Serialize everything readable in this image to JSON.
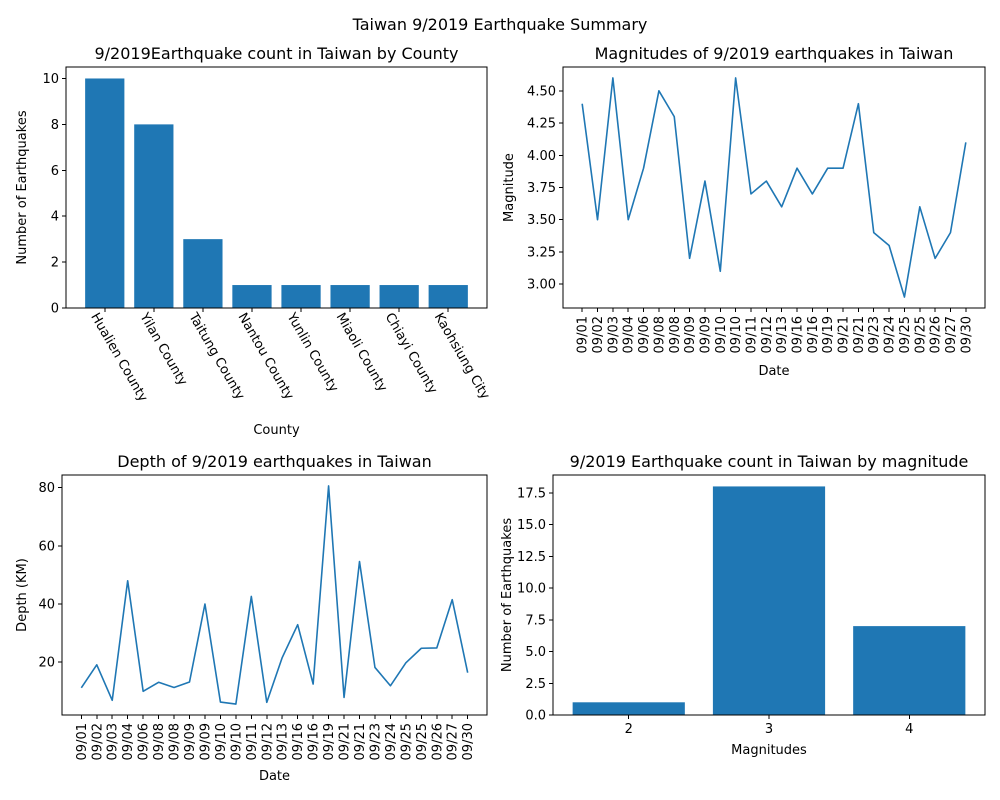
{
  "suptitle": "Taiwan 9/2019 Earthquake Summary",
  "colors": {
    "bar": "#1f77b4",
    "line": "#1f77b4",
    "axis": "#000000"
  },
  "chart_data": [
    {
      "type": "bar",
      "title": "9/2019Earthquake count in Taiwan by County",
      "xlabel": "County",
      "ylabel": "Number of Earthquakes",
      "categories": [
        "Hualien County",
        "Yilan County",
        "Taitung County",
        "Nantou County",
        "Yunlin County",
        "Miaoli County",
        "Chiayi County",
        "Kaohsiung City"
      ],
      "values": [
        10,
        8,
        3,
        1,
        1,
        1,
        1,
        1
      ],
      "ylim": [
        0,
        10.5
      ],
      "yticks": [
        0,
        2,
        4,
        6,
        8,
        10
      ],
      "ytick_labels": [
        "0",
        "2",
        "4",
        "6",
        "8",
        "10"
      ],
      "grid": false,
      "xtick_rotation": -60
    },
    {
      "type": "line",
      "title": "Magnitudes of 9/2019 earthquakes in Taiwan",
      "xlabel": "Date",
      "ylabel": "Magnitude",
      "x": [
        "09/01",
        "09/02",
        "09/03",
        "09/04",
        "09/06",
        "09/08",
        "09/08",
        "09/09",
        "09/09",
        "09/10",
        "09/10",
        "09/11",
        "09/12",
        "09/13",
        "09/16",
        "09/16",
        "09/19",
        "09/21",
        "09/21",
        "09/23",
        "09/24",
        "09/25",
        "09/25",
        "09/26",
        "09/27",
        "09/30"
      ],
      "values": [
        4.4,
        3.5,
        4.6,
        3.5,
        3.9,
        4.5,
        4.3,
        3.2,
        3.8,
        3.1,
        4.6,
        3.7,
        3.8,
        3.6,
        3.9,
        3.7,
        3.9,
        3.9,
        4.4,
        3.4,
        3.3,
        2.9,
        3.6,
        3.2,
        3.4,
        4.1
      ],
      "ylim": [
        2.815,
        4.685
      ],
      "yticks": [
        3.0,
        3.25,
        3.5,
        3.75,
        4.0,
        4.25,
        4.5
      ],
      "ytick_labels": [
        "3.00",
        "3.25",
        "3.50",
        "3.75",
        "4.00",
        "4.25",
        "4.50"
      ],
      "grid": false,
      "xtick_rotation": -90
    },
    {
      "type": "line",
      "title": "Depth of 9/2019 earthquakes in Taiwan",
      "xlabel": "Date",
      "ylabel": "Depth (KM)",
      "x": [
        "09/01",
        "09/02",
        "09/03",
        "09/04",
        "09/06",
        "09/08",
        "09/08",
        "09/09",
        "09/09",
        "09/10",
        "09/10",
        "09/11",
        "09/12",
        "09/13",
        "09/16",
        "09/16",
        "09/19",
        "09/21",
        "09/21",
        "09/23",
        "09/24",
        "09/25",
        "09/25",
        "09/26",
        "09/27",
        "09/30"
      ],
      "values": [
        11.2,
        19.1,
        6.9,
        48.0,
        10.0,
        13.1,
        11.3,
        13.2,
        40.0,
        6.3,
        5.6,
        42.6,
        6.2,
        21.6,
        32.9,
        12.5,
        80.6,
        7.9,
        54.6,
        18.2,
        11.9,
        19.8,
        24.8,
        24.9,
        41.5,
        16.4
      ],
      "ylim": [
        1.85,
        84.35
      ],
      "yticks": [
        20,
        40,
        60,
        80
      ],
      "ytick_labels": [
        "20",
        "40",
        "60",
        "80"
      ],
      "grid": false,
      "xtick_rotation": -90
    },
    {
      "type": "bar",
      "title": "9/2019 Earthquake count in Taiwan by magnitude",
      "xlabel": "Magnitudes",
      "ylabel": "Number of Earthquakes",
      "categories": [
        "2",
        "3",
        "4"
      ],
      "values": [
        1,
        18,
        7
      ],
      "ylim": [
        0,
        18.9
      ],
      "yticks": [
        0,
        2.5,
        5,
        7.5,
        10,
        12.5,
        15,
        17.5
      ],
      "ytick_labels": [
        "0.0",
        "2.5",
        "5.0",
        "7.5",
        "10.0",
        "12.5",
        "15.0",
        "17.5"
      ],
      "grid": false,
      "xtick_rotation": 0
    }
  ]
}
